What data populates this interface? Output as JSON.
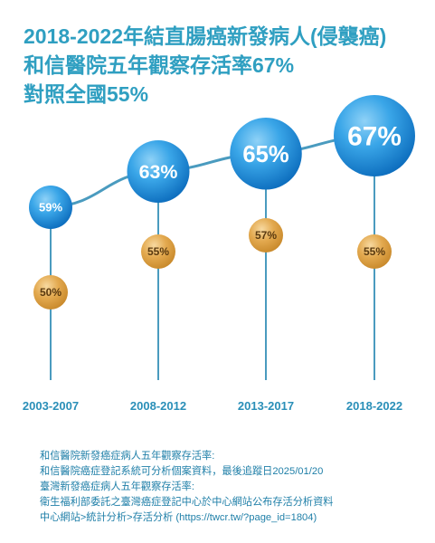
{
  "title": {
    "line1": "2018-2022年結直腸癌新發病人(侵襲癌)",
    "line2": "和信醫院五年觀察存活率67%",
    "line3": "對照全國55%"
  },
  "colors": {
    "title": "#2f9fc1",
    "hospital_bubble": "#1a8fd6",
    "national_bubble": "#e0a54a",
    "trend_line": "#4a9bbf",
    "stem": "#4a9bbf",
    "category_label": "#2a8fb8",
    "footer_text": "#1f7fa8",
    "footer_bg": "#dff0f8"
  },
  "chart_data": {
    "type": "scatter",
    "categories": [
      "2003-2007",
      "2008-2012",
      "2013-2017",
      "2018-2022"
    ],
    "series": [
      {
        "name": "",
        "values": [
          59,
          63,
          65,
          67
        ],
        "labels": [
          "59%",
          "63%",
          "65%",
          "67%"
        ]
      },
      {
        "name": "",
        "values": [
          50,
          55,
          57,
          55
        ],
        "labels": [
          "50%",
          "55%",
          "57%",
          "55%"
        ]
      }
    ],
    "title": "2018-2022年結直腸癌新發病人(侵襲癌) 和信醫院五年觀察存活率67% 對照全國55%",
    "xlabel": "",
    "ylabel": "",
    "grid": false,
    "legend": "none"
  },
  "footer": {
    "lines": [
      "和信醫院新發癌症病人五年觀察存活率:",
      "和信醫院癌症登記系統可分析個案資料，最後追蹤日2025/01/20",
      "臺灣新發癌症病人五年觀察存活率:",
      "衛生福利部委託之臺灣癌症登記中心於中心網站公布存活分析資料",
      "中心網站>統計分析>存活分析 (https://twcr.tw/?page_id=1804)"
    ]
  }
}
